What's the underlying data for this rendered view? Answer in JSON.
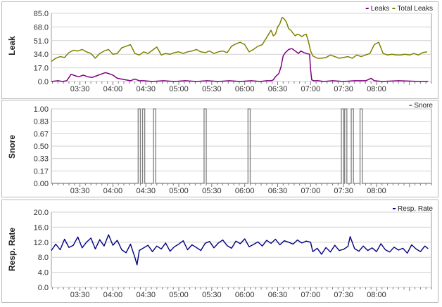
{
  "chart_data": [
    {
      "type": "line",
      "ylabel": "Leak",
      "ylim": [
        0,
        85
      ],
      "y_ticks": [
        "0.0",
        "17.0",
        "34.0",
        "51.0",
        "68.0",
        "85.0"
      ],
      "x_ticks": [
        "03:30",
        "04:00",
        "04:30",
        "05:00",
        "05:30",
        "06:00",
        "06:30",
        "07:00",
        "07:30",
        "08:00"
      ],
      "grid": true,
      "legend": "top-right",
      "series": [
        {
          "name": "Leaks",
          "color": "#800080",
          "x": [
            "03:04",
            "03:10",
            "03:14",
            "03:18",
            "03:22",
            "03:26",
            "03:29",
            "03:33",
            "03:37",
            "03:41",
            "03:45",
            "03:49",
            "03:53",
            "03:56",
            "04:00",
            "04:04",
            "04:08",
            "04:12",
            "04:16",
            "04:20",
            "04:24",
            "04:28",
            "04:36",
            "04:46",
            "04:56",
            "05:06",
            "05:16",
            "05:26",
            "05:36",
            "05:46",
            "05:56",
            "06:06",
            "06:14",
            "06:20",
            "06:24",
            "06:26",
            "06:28",
            "06:31",
            "06:33",
            "06:35",
            "06:37",
            "06:40",
            "06:43",
            "06:46",
            "06:49",
            "06:51",
            "06:54",
            "06:56",
            "06:59",
            "07:00",
            "07:01",
            "07:03",
            "07:07",
            "07:12",
            "07:20",
            "07:30",
            "07:40",
            "07:50",
            "07:52",
            "07:55",
            "07:58",
            "08:05",
            "08:20",
            "08:40",
            "08:47"
          ],
          "y": [
            0,
            1,
            0,
            1,
            9,
            7,
            6,
            8,
            6,
            5,
            7,
            9,
            11,
            10,
            8,
            4,
            3,
            2,
            1,
            3,
            1,
            1,
            0,
            1,
            0,
            1,
            0,
            1,
            0,
            1,
            0,
            1,
            0,
            1,
            1,
            2,
            6,
            10,
            18,
            32,
            36,
            40,
            41,
            38,
            35,
            38,
            36,
            35,
            34,
            15,
            2,
            1,
            1,
            0,
            1,
            0,
            1,
            1,
            2,
            4,
            1,
            0,
            1,
            0,
            0
          ]
        },
        {
          "name": "Total Leaks",
          "color": "#808000",
          "x": [
            "03:04",
            "03:08",
            "03:12",
            "03:16",
            "03:20",
            "03:24",
            "03:28",
            "03:32",
            "03:36",
            "03:40",
            "03:44",
            "03:48",
            "03:52",
            "03:56",
            "04:00",
            "04:04",
            "04:08",
            "04:12",
            "04:16",
            "04:20",
            "04:24",
            "04:28",
            "04:32",
            "04:36",
            "04:40",
            "04:44",
            "04:48",
            "04:52",
            "04:56",
            "05:00",
            "05:04",
            "05:08",
            "05:12",
            "05:16",
            "05:20",
            "05:24",
            "05:28",
            "05:32",
            "05:36",
            "05:40",
            "05:44",
            "05:48",
            "05:52",
            "05:56",
            "06:00",
            "06:04",
            "06:08",
            "06:12",
            "06:16",
            "06:20",
            "06:24",
            "06:26",
            "06:28",
            "06:30",
            "06:32",
            "06:34",
            "06:36",
            "06:38",
            "06:40",
            "06:42",
            "06:44",
            "06:46",
            "06:48",
            "06:50",
            "06:52",
            "06:54",
            "06:56",
            "06:58",
            "07:00",
            "07:02",
            "07:06",
            "07:10",
            "07:14",
            "07:18",
            "07:22",
            "07:26",
            "07:30",
            "07:34",
            "07:38",
            "07:42",
            "07:46",
            "07:50",
            "07:54",
            "07:58",
            "08:02",
            "08:06",
            "08:10",
            "08:14",
            "08:18",
            "08:22",
            "08:26",
            "08:30",
            "08:34",
            "08:38",
            "08:42",
            "08:46"
          ],
          "y": [
            25,
            29,
            31,
            30,
            36,
            39,
            38,
            40,
            37,
            35,
            29,
            35,
            38,
            40,
            34,
            35,
            42,
            44,
            46,
            35,
            33,
            37,
            35,
            39,
            43,
            33,
            35,
            34,
            36,
            37,
            35,
            37,
            38,
            40,
            37,
            36,
            38,
            35,
            37,
            38,
            36,
            44,
            47,
            49,
            46,
            37,
            40,
            44,
            46,
            55,
            64,
            57,
            59,
            68,
            72,
            80,
            78,
            74,
            66,
            64,
            60,
            57,
            59,
            58,
            56,
            58,
            59,
            50,
            38,
            32,
            29,
            29,
            30,
            33,
            31,
            29,
            30,
            31,
            29,
            33,
            31,
            33,
            35,
            46,
            49,
            35,
            33,
            34,
            33,
            33,
            34,
            33,
            35,
            33,
            36,
            37
          ]
        }
      ]
    },
    {
      "type": "line",
      "ylabel": "Snore",
      "ylim": [
        0,
        1
      ],
      "y_ticks": [
        "0.00",
        "0.17",
        "0.33",
        "0.50",
        "0.67",
        "0.83",
        "1.00"
      ],
      "x_ticks": [
        "03:30",
        "04:00",
        "04:30",
        "05:00",
        "05:30",
        "06:00",
        "06:30",
        "07:00",
        "07:30",
        "08:00"
      ],
      "grid": true,
      "legend": "top-right",
      "series": [
        {
          "name": "Snore",
          "color": "#808080",
          "pulses": [
            [
              "04:23",
              "04:25"
            ],
            [
              "04:27",
              "04:29"
            ],
            [
              "04:37",
              "04:39"
            ],
            [
              "05:23",
              "05:25"
            ],
            [
              "06:03",
              "06:05"
            ],
            [
              "07:28",
              "07:30"
            ],
            [
              "07:31",
              "07:33"
            ],
            [
              "07:37",
              "07:39"
            ],
            [
              "07:45",
              "07:47"
            ]
          ]
        }
      ]
    },
    {
      "type": "line",
      "ylabel": "Resp. Rate",
      "ylim": [
        0,
        20
      ],
      "y_ticks": [
        "0.0",
        "4.0",
        "8.0",
        "12.0",
        "16.0",
        "20.0"
      ],
      "x_ticks": [
        "03:30",
        "04:00",
        "04:30",
        "05:00",
        "05:30",
        "06:00",
        "06:30",
        "07:00",
        "07:30",
        "08:00"
      ],
      "grid": true,
      "legend": "top-right",
      "series": [
        {
          "name": "Resp. Rate",
          "color": "#000080",
          "x": [
            "03:04",
            "03:08",
            "03:12",
            "03:16",
            "03:20",
            "03:24",
            "03:28",
            "03:32",
            "03:36",
            "03:40",
            "03:44",
            "03:48",
            "03:52",
            "03:56",
            "04:00",
            "04:04",
            "04:08",
            "04:12",
            "04:16",
            "04:20",
            "04:22",
            "04:24",
            "04:28",
            "04:32",
            "04:36",
            "04:40",
            "04:44",
            "04:48",
            "04:52",
            "04:56",
            "05:00",
            "05:04",
            "05:08",
            "05:12",
            "05:16",
            "05:20",
            "05:24",
            "05:28",
            "05:32",
            "05:36",
            "05:40",
            "05:44",
            "05:48",
            "05:52",
            "05:56",
            "06:00",
            "06:04",
            "06:08",
            "06:12",
            "06:16",
            "06:20",
            "06:24",
            "06:28",
            "06:32",
            "06:36",
            "06:40",
            "06:44",
            "06:48",
            "06:52",
            "06:56",
            "07:00",
            "07:02",
            "07:06",
            "07:10",
            "07:14",
            "07:18",
            "07:22",
            "07:26",
            "07:30",
            "07:34",
            "07:36",
            "07:40",
            "07:44",
            "07:48",
            "07:52",
            "07:56",
            "08:00",
            "08:04",
            "08:08",
            "08:12",
            "08:16",
            "08:20",
            "08:24",
            "08:28",
            "08:32",
            "08:36",
            "08:40",
            "08:44",
            "08:47"
          ],
          "y": [
            9.8,
            11.5,
            10.0,
            12.8,
            10.6,
            11.2,
            13.4,
            10.5,
            12.0,
            13.1,
            10.2,
            12.7,
            11.0,
            14.0,
            11.2,
            12.5,
            10.0,
            9.2,
            11.5,
            8.0,
            6.0,
            9.8,
            10.5,
            11.2,
            9.5,
            11.0,
            10.2,
            11.8,
            9.6,
            10.8,
            11.5,
            12.4,
            10.0,
            11.3,
            10.6,
            9.8,
            11.7,
            12.2,
            10.5,
            11.8,
            12.6,
            11.1,
            10.4,
            12.3,
            11.6,
            12.9,
            10.8,
            11.4,
            12.1,
            11.0,
            12.5,
            11.7,
            12.8,
            11.3,
            12.4,
            12.0,
            11.5,
            12.6,
            11.8,
            12.3,
            12.0,
            9.5,
            10.4,
            8.8,
            10.6,
            9.4,
            11.2,
            9.8,
            10.1,
            10.9,
            13.5,
            10.3,
            9.6,
            11.0,
            9.8,
            10.5,
            9.5,
            11.6,
            10.0,
            9.4,
            10.7,
            9.9,
            10.4,
            9.1,
            11.3,
            10.2,
            9.5,
            11.0,
            10.3
          ]
        }
      ]
    }
  ]
}
